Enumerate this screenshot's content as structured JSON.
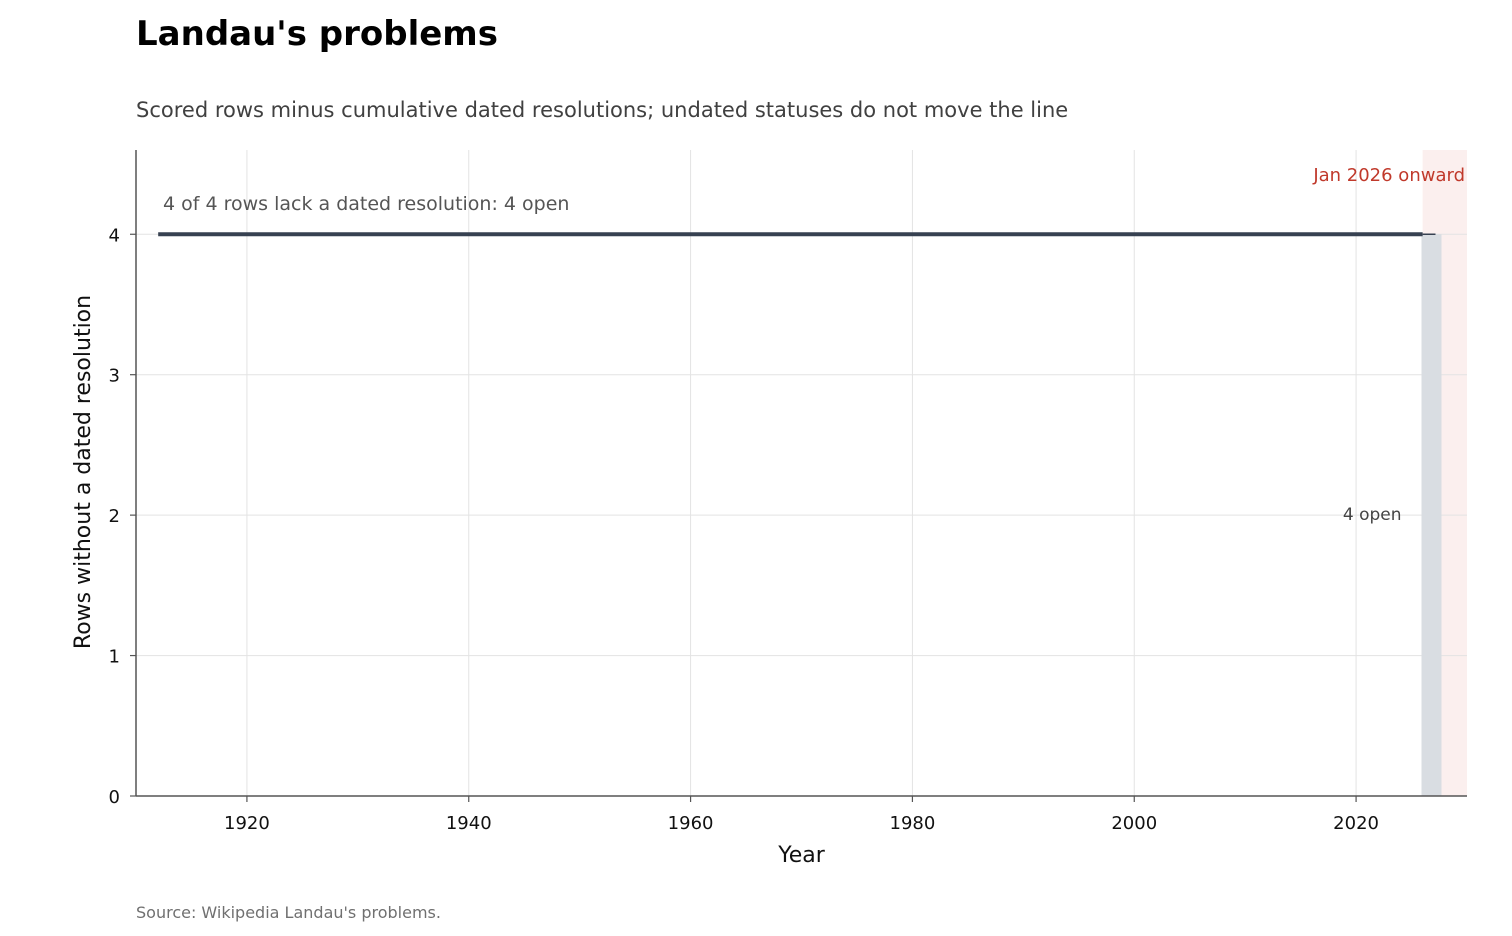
{
  "chart_data": {
    "type": "line",
    "title": "Landau's problems",
    "subtitle": "Scored rows minus cumulative dated resolutions; undated statuses do not move the line",
    "xlabel": "Year",
    "ylabel": "Rows without a dated resolution",
    "xlim": [
      1910,
      2030
    ],
    "ylim": [
      0,
      4.6
    ],
    "x_ticks": [
      1920,
      1940,
      1960,
      1980,
      2000,
      2020
    ],
    "y_ticks": [
      0,
      1,
      2,
      3,
      4
    ],
    "grid": true,
    "series": [
      {
        "x": [
          1912,
          2026
        ],
        "values": [
          4,
          4
        ],
        "color": "#374151"
      }
    ],
    "bar": {
      "x": 2026.8,
      "value": 4,
      "label": "4 open",
      "color": "#d9dde2"
    },
    "shaded_region": {
      "x_start": 2026,
      "x_end": 2030,
      "label": "Jan 2026 onward",
      "color": "#fbefee",
      "label_color": "#c0392b"
    },
    "annotation": "4 of 4 rows lack a dated resolution: 4 open",
    "source": "Source: Wikipedia Landau's problems."
  }
}
